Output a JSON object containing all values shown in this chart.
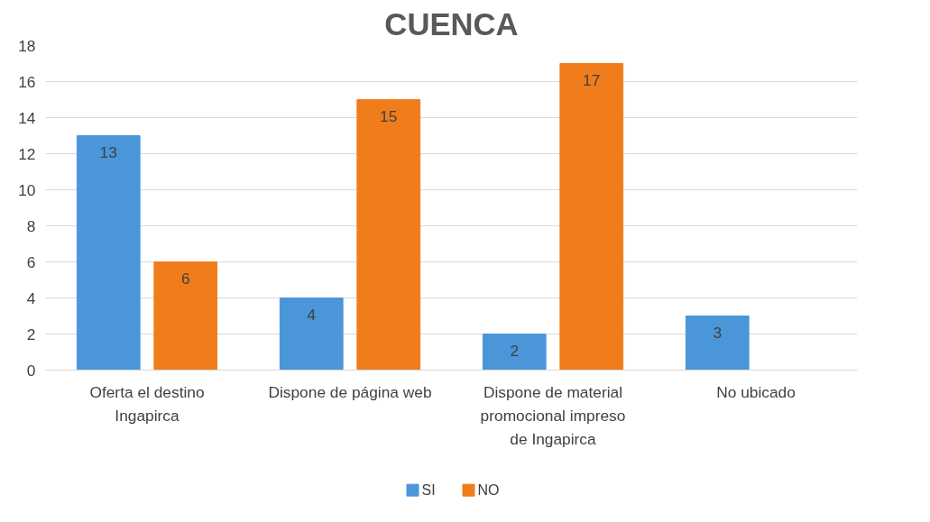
{
  "chart_data": {
    "type": "bar",
    "title": "CUENCA",
    "categories": [
      "Oferta el destino Ingapirca",
      "Dispone de página web",
      "Dispone de material promocional impreso de Ingapirca",
      "No ubicado"
    ],
    "series": [
      {
        "name": "SI",
        "color": "#4a96d8",
        "values": [
          13,
          4,
          2,
          3
        ]
      },
      {
        "name": "NO",
        "color": "#f07c1c",
        "values": [
          6,
          15,
          17,
          null
        ]
      }
    ],
    "ylim": [
      0,
      18
    ],
    "yticks": [
      0,
      2,
      4,
      6,
      8,
      10,
      12,
      14,
      16,
      18
    ],
    "grid": "y",
    "legend": "bottom",
    "data_labels": true
  }
}
